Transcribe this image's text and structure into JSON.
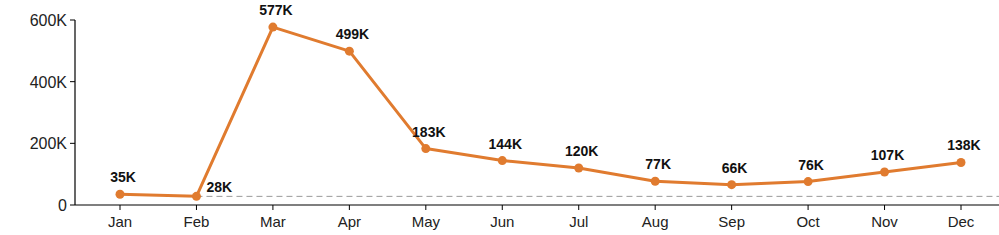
{
  "chart_data": {
    "type": "line",
    "categories": [
      "Jan",
      "Feb",
      "Mar",
      "Apr",
      "May",
      "Jun",
      "Jul",
      "Aug",
      "Sep",
      "Oct",
      "Nov",
      "Dec"
    ],
    "values": [
      35000,
      28000,
      577000,
      499000,
      183000,
      144000,
      120000,
      77000,
      66000,
      76000,
      107000,
      138000
    ],
    "value_labels": [
      "35K",
      "28K",
      "577K",
      "499K",
      "183K",
      "144K",
      "120K",
      "77K",
      "66K",
      "76K",
      "107K",
      "138K"
    ],
    "reference_value": 28000,
    "ylim": [
      0,
      600000
    ],
    "yticks": [
      0,
      {
        "value": 200000,
        "label": "200K"
      },
      {
        "value": 400000,
        "label": "400K"
      },
      {
        "value": 600000,
        "label": "600K"
      }
    ],
    "color": "#e07b2f",
    "marker": "circle",
    "data_labels": true,
    "grid": false
  }
}
